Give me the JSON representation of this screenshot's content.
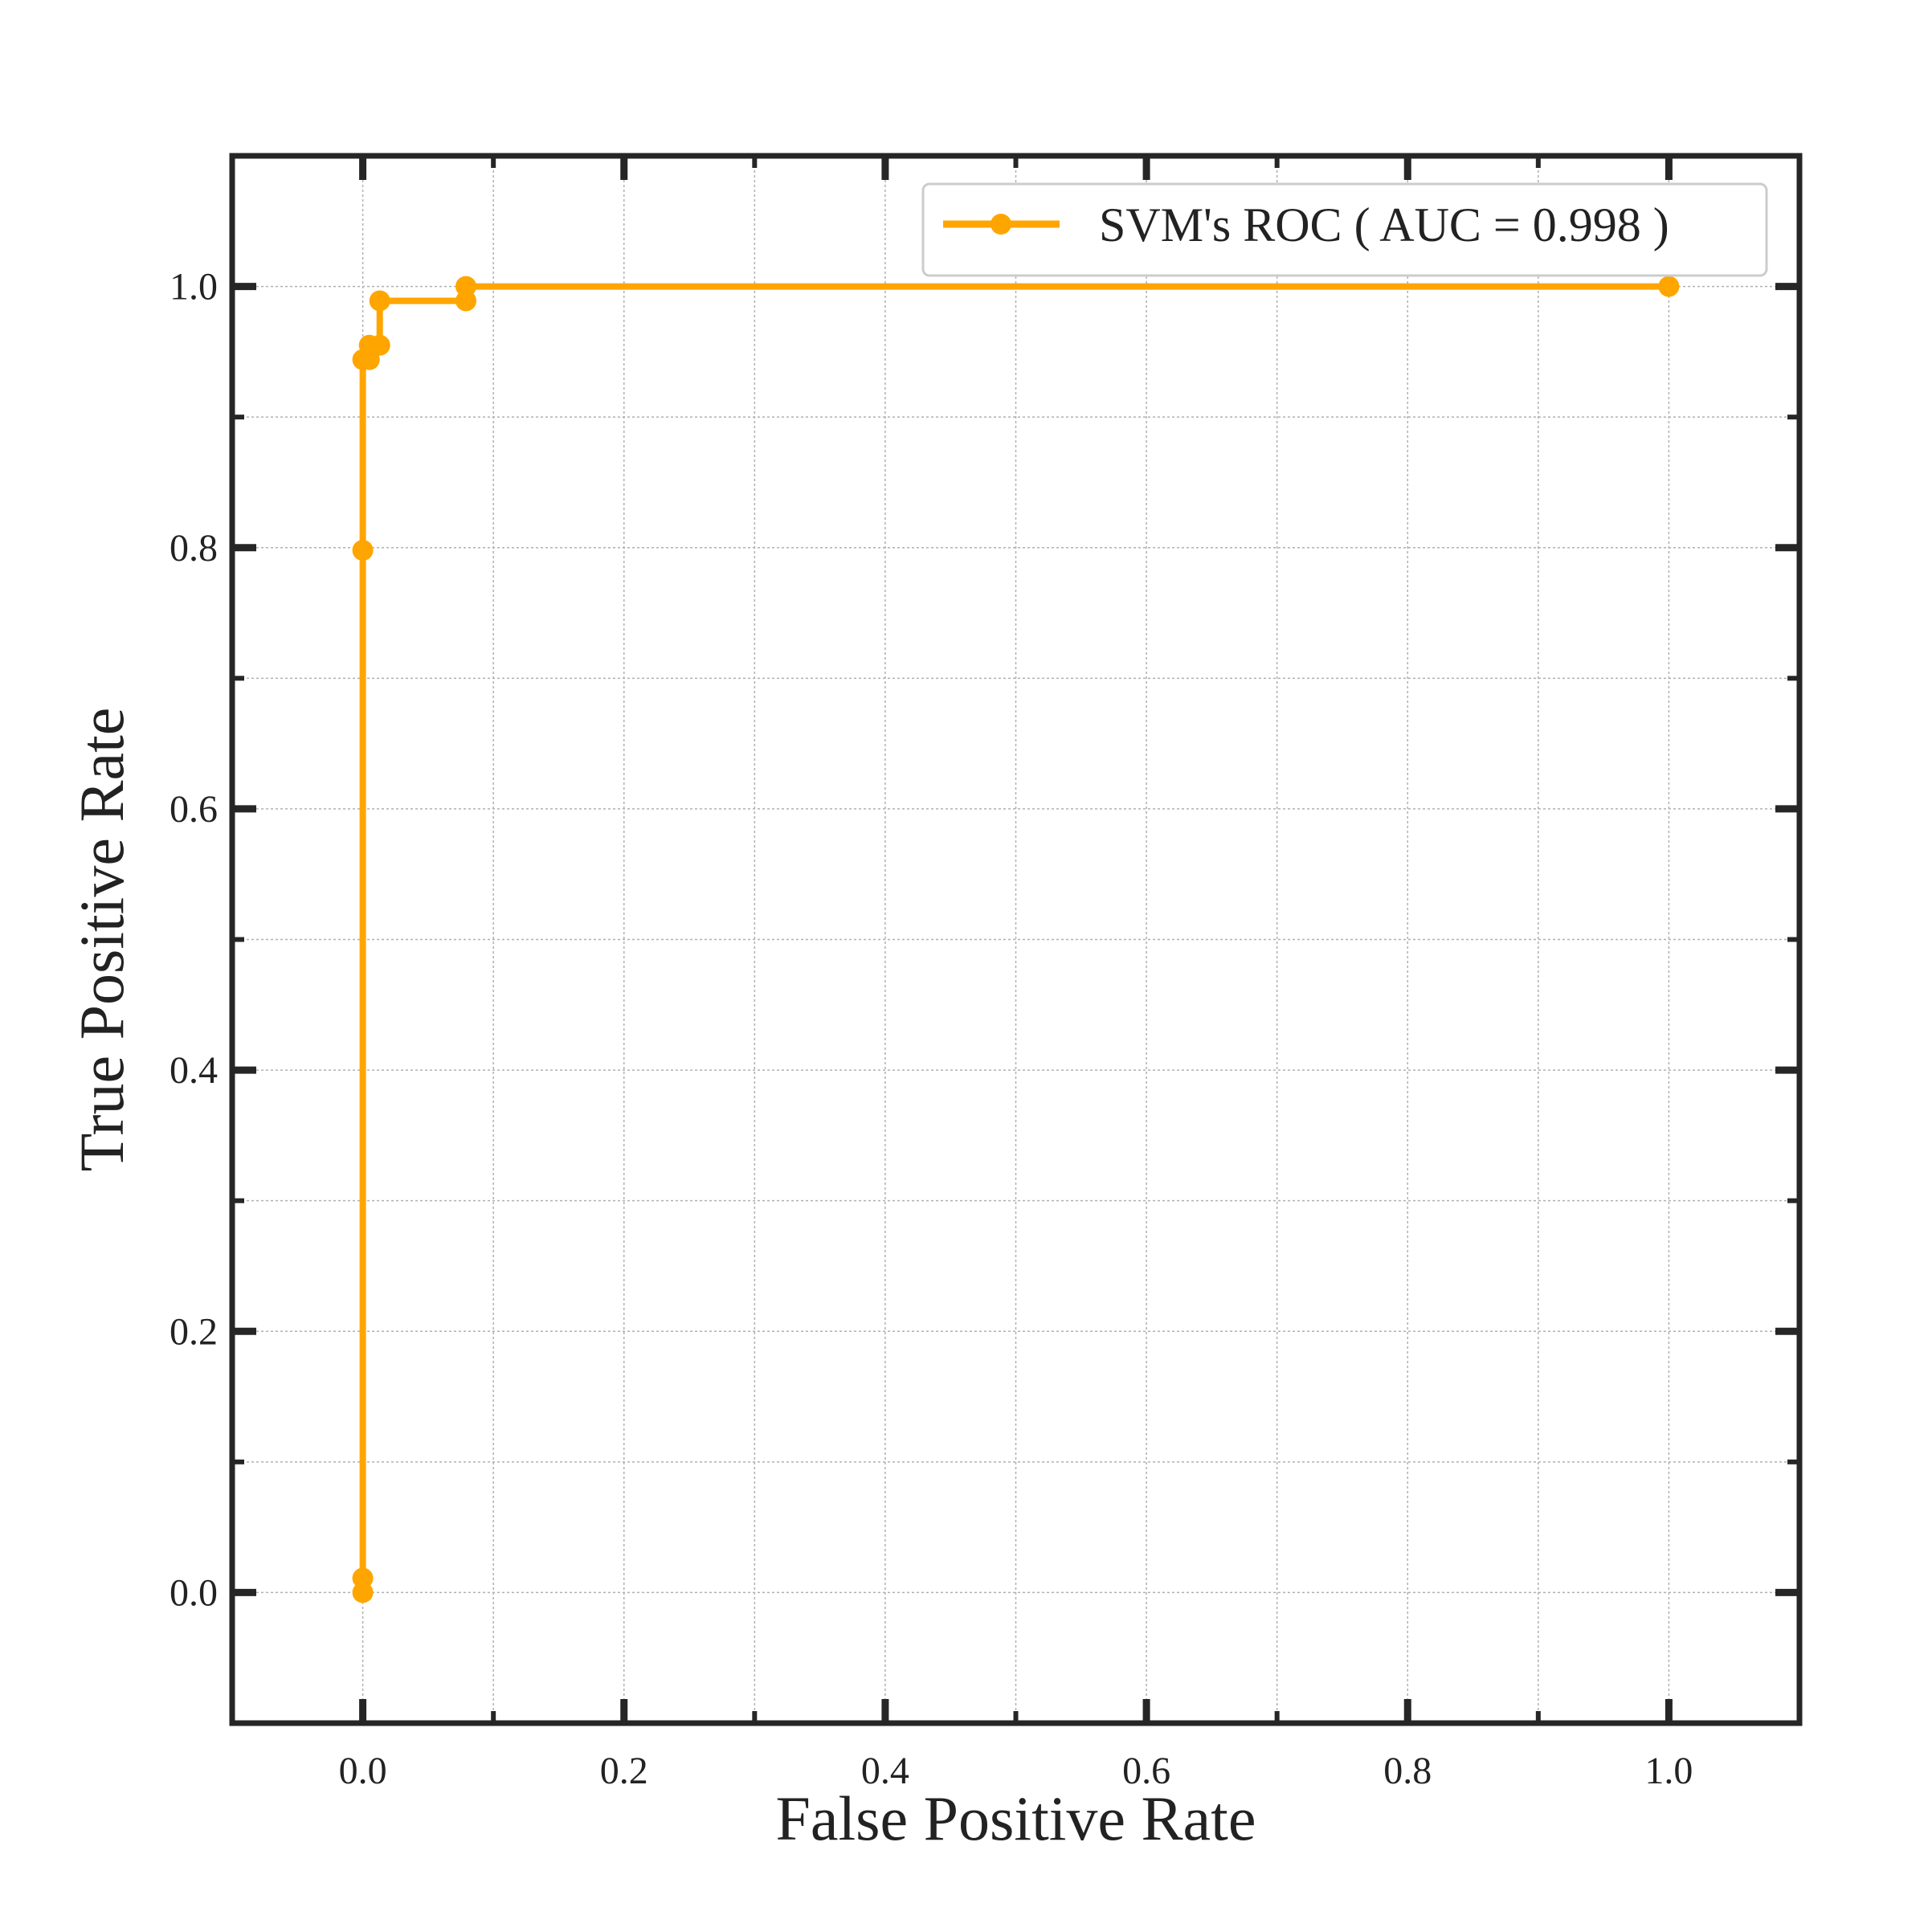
{
  "chart_data": {
    "type": "line",
    "title": "",
    "xlabel": "False Positive Rate",
    "ylabel": "True Positive Rate",
    "xlim": [
      -0.1,
      1.1
    ],
    "ylim": [
      -0.1,
      1.1
    ],
    "xticks": [
      "0.0",
      "0.2",
      "0.4",
      "0.6",
      "0.8",
      "1.0"
    ],
    "yticks": [
      "0.0",
      "0.2",
      "0.4",
      "0.6",
      "0.8",
      "1.0"
    ],
    "grid": true,
    "legend_position": "top-right",
    "series": [
      {
        "name": "SVM's ROC ( AUC = 0.998 )",
        "color": "#ffa500",
        "marker": "circle",
        "x": [
          0.0,
          0.0,
          0.0,
          0.0,
          0.005,
          0.005,
          0.013,
          0.013,
          0.079,
          0.079,
          1.0
        ],
        "y": [
          0.0,
          0.011,
          0.798,
          0.944,
          0.944,
          0.955,
          0.955,
          0.989,
          0.989,
          1.0,
          1.0
        ]
      }
    ],
    "colors": {
      "axes": "#262626",
      "grid": "#b0b0b0",
      "text": "#222222",
      "legend_border": "#cccccc"
    }
  }
}
